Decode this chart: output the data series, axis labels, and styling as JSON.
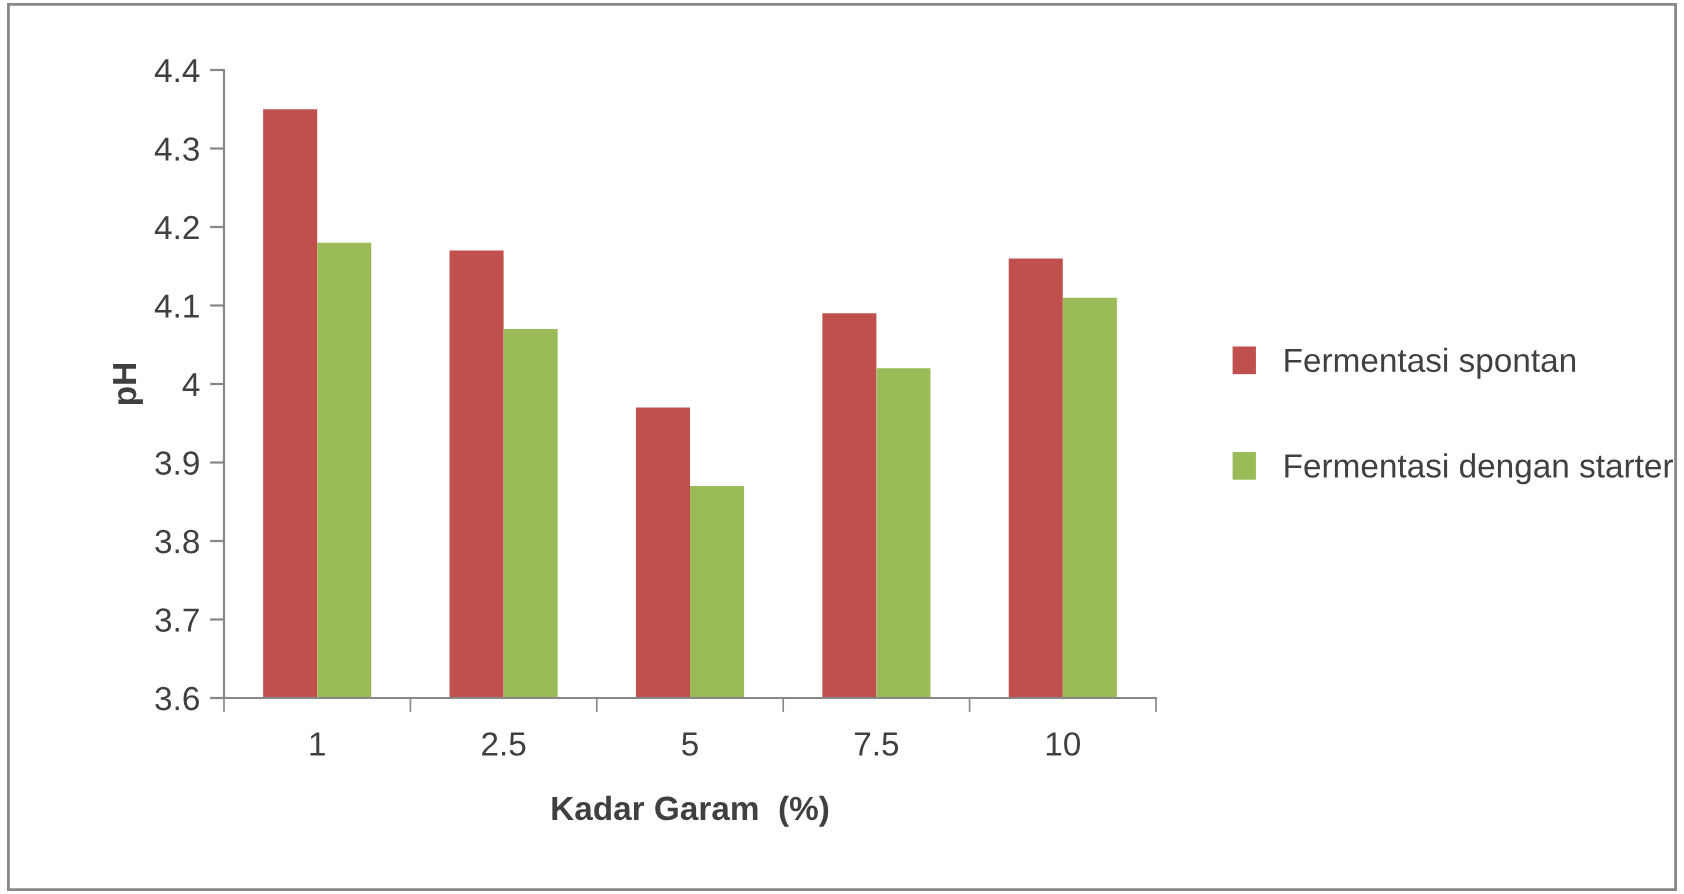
{
  "chart_data": {
    "type": "bar",
    "xlabel": "Kadar Garam  (%)",
    "ylabel": "pH",
    "categories": [
      "1",
      "2.5",
      "5",
      "7.5",
      "10"
    ],
    "series": [
      {
        "name": "Fermentasi spontan",
        "color": "#c0504d",
        "values": [
          4.35,
          4.17,
          3.97,
          4.09,
          4.16
        ]
      },
      {
        "name": "Fermentasi dengan starter",
        "color": "#9bbb59",
        "values": [
          4.18,
          4.07,
          3.87,
          4.02,
          4.11
        ]
      }
    ],
    "ylim": [
      3.6,
      4.4
    ],
    "yticks": [
      3.6,
      3.7,
      3.8,
      3.9,
      4,
      4.1,
      4.2,
      4.3,
      4.4
    ],
    "grid": false,
    "legend": "right"
  }
}
